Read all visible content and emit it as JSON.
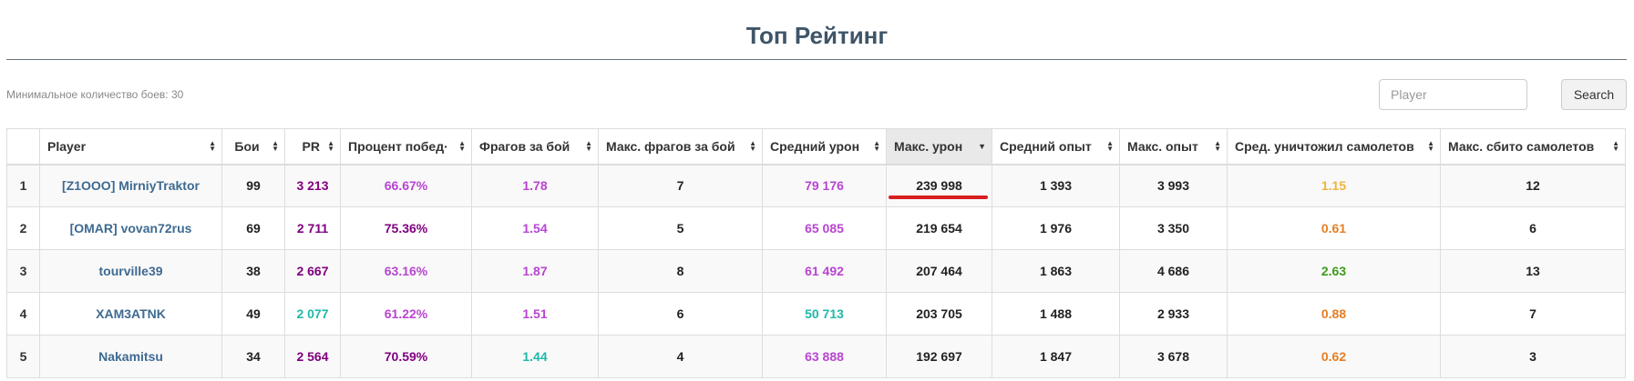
{
  "header": {
    "title": "Топ Рейтинг"
  },
  "toolbar": {
    "min_battles_text": "Минимальное количество боев: 30",
    "search_placeholder": "Player",
    "search_button_label": "Search"
  },
  "colors": {
    "title": "#3f5568",
    "player_link": "#3e6a92",
    "purple": "#800080",
    "violet": "#b845d2",
    "teal": "#1fb9a8",
    "orange": "#e67e22",
    "yellow": "#f0b43c",
    "green": "#3d9a1c",
    "dark": "#222222",
    "highlight_underline": "#d81e1e"
  },
  "table": {
    "columns": [
      {
        "key": "rank",
        "label": ""
      },
      {
        "key": "player",
        "label": "Player"
      },
      {
        "key": "battles",
        "label": "Бои"
      },
      {
        "key": "pr",
        "label": "PR"
      },
      {
        "key": "win_rate",
        "label": "Процент побед·"
      },
      {
        "key": "frags_per_battle",
        "label": "Фрагов за бой"
      },
      {
        "key": "max_frags",
        "label": "Макс. фрагов за бой"
      },
      {
        "key": "avg_damage",
        "label": "Средний урон"
      },
      {
        "key": "max_damage",
        "label": "Макс. урон",
        "sorted": "desc"
      },
      {
        "key": "avg_xp",
        "label": "Средний опыт"
      },
      {
        "key": "max_xp",
        "label": "Макс. опыт"
      },
      {
        "key": "avg_planes",
        "label": "Сред. уничтожил самолетов"
      },
      {
        "key": "max_planes",
        "label": "Макс. сбито самолетов"
      }
    ],
    "rows": [
      {
        "rank": "1",
        "player": "[Z1OOO] MirniyTraktor",
        "battles": "99",
        "pr": {
          "value": "3 213",
          "color": "purple"
        },
        "win_rate": {
          "value": "66.67%",
          "color": "violet"
        },
        "frags_per_battle": {
          "value": "1.78",
          "color": "violet"
        },
        "max_frags": "7",
        "avg_damage": {
          "value": "79 176",
          "color": "violet"
        },
        "max_damage": "239 998",
        "avg_xp": "1 393",
        "max_xp": "3 993",
        "avg_planes": {
          "value": "1.15",
          "color": "yellow"
        },
        "max_planes": "12"
      },
      {
        "rank": "2",
        "player": "[OMAR] vovan72rus",
        "battles": "69",
        "pr": {
          "value": "2 711",
          "color": "purple"
        },
        "win_rate": {
          "value": "75.36%",
          "color": "purple"
        },
        "frags_per_battle": {
          "value": "1.54",
          "color": "violet"
        },
        "max_frags": "5",
        "avg_damage": {
          "value": "65 085",
          "color": "violet"
        },
        "max_damage": "219 654",
        "avg_xp": "1 976",
        "max_xp": "3 350",
        "avg_planes": {
          "value": "0.61",
          "color": "orange"
        },
        "max_planes": "6"
      },
      {
        "rank": "3",
        "player": "tourville39",
        "battles": "38",
        "pr": {
          "value": "2 667",
          "color": "purple"
        },
        "win_rate": {
          "value": "63.16%",
          "color": "violet"
        },
        "frags_per_battle": {
          "value": "1.87",
          "color": "violet"
        },
        "max_frags": "8",
        "avg_damage": {
          "value": "61 492",
          "color": "violet"
        },
        "max_damage": "207 464",
        "avg_xp": "1 863",
        "max_xp": "4 686",
        "avg_planes": {
          "value": "2.63",
          "color": "green"
        },
        "max_planes": "13"
      },
      {
        "rank": "4",
        "player": "XAM3ATNK",
        "battles": "49",
        "pr": {
          "value": "2 077",
          "color": "teal"
        },
        "win_rate": {
          "value": "61.22%",
          "color": "violet"
        },
        "frags_per_battle": {
          "value": "1.51",
          "color": "violet"
        },
        "max_frags": "6",
        "avg_damage": {
          "value": "50 713",
          "color": "teal"
        },
        "max_damage": "203 705",
        "avg_xp": "1 488",
        "max_xp": "2 933",
        "avg_planes": {
          "value": "0.88",
          "color": "orange"
        },
        "max_planes": "7"
      },
      {
        "rank": "5",
        "player": "Nakamitsu",
        "battles": "34",
        "pr": {
          "value": "2 564",
          "color": "purple"
        },
        "win_rate": {
          "value": "70.59%",
          "color": "purple"
        },
        "frags_per_battle": {
          "value": "1.44",
          "color": "teal"
        },
        "max_frags": "4",
        "avg_damage": {
          "value": "63 888",
          "color": "violet"
        },
        "max_damage": "192 697",
        "avg_xp": "1 847",
        "max_xp": "3 678",
        "avg_planes": {
          "value": "0.62",
          "color": "orange"
        },
        "max_planes": "3"
      }
    ]
  }
}
